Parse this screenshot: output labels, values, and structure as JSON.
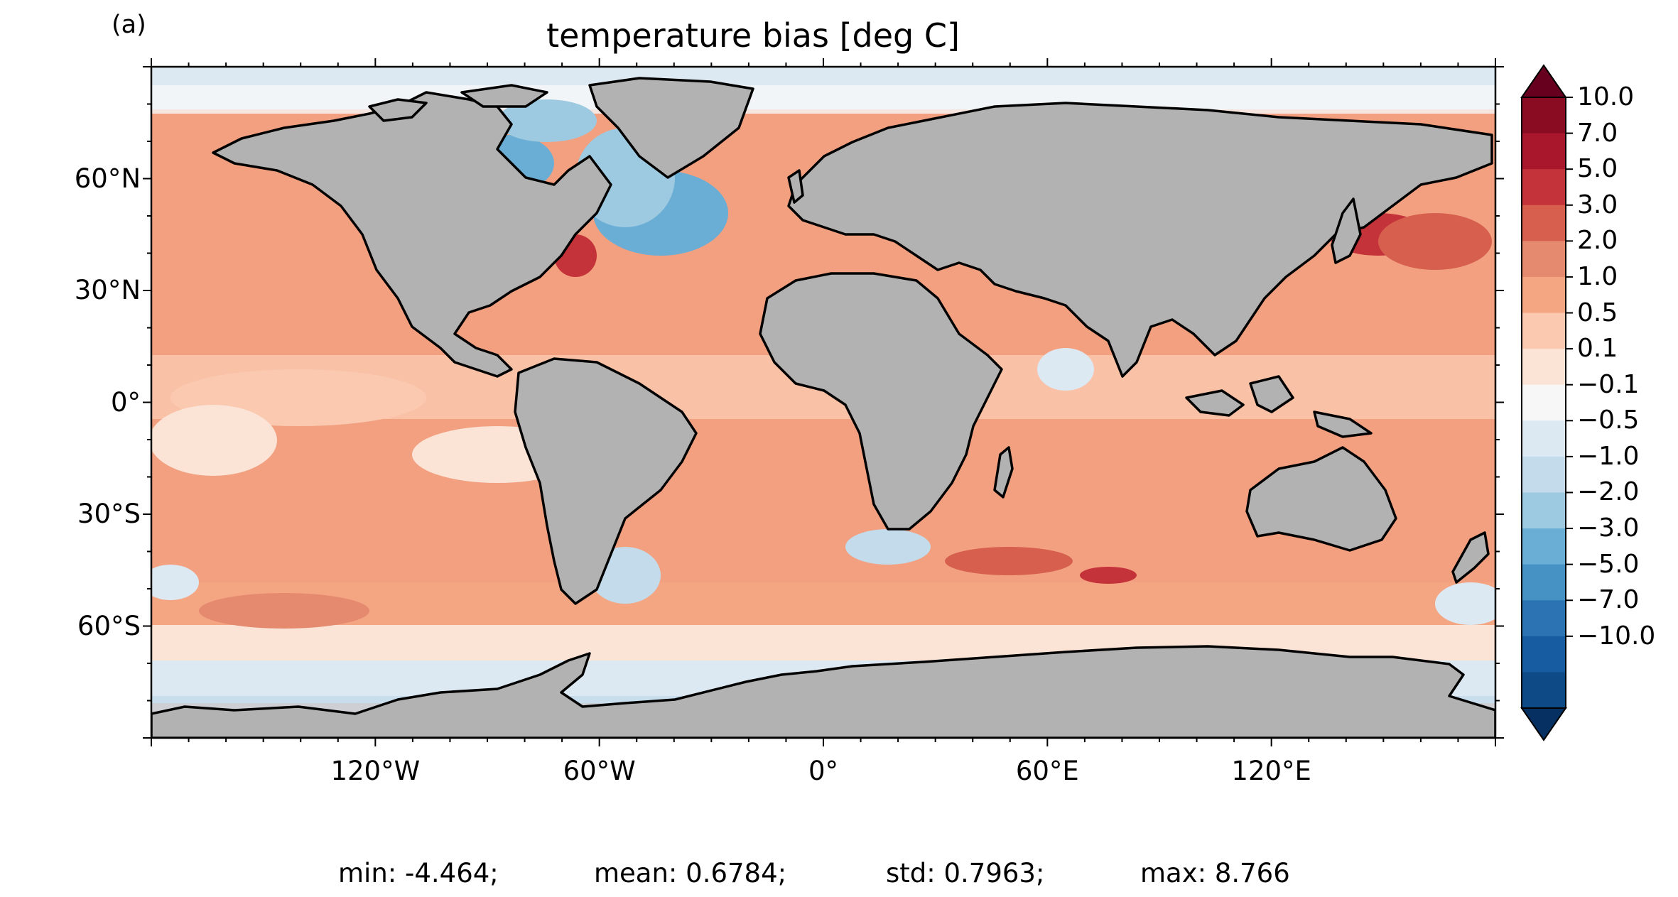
{
  "panel_label": "(a)",
  "title": "temperature bias [deg C]",
  "map": {
    "projection": "PlateCarree",
    "land_color": "#b2b2b2",
    "coastline_color": "#000000",
    "missing_ocean_color": "#ffffff",
    "extent": {
      "lon": [
        -180,
        180
      ],
      "lat": [
        -90,
        90
      ]
    }
  },
  "axes": {
    "y_ticks": [
      {
        "value": 60,
        "label": "60°N"
      },
      {
        "value": 30,
        "label": "30°N"
      },
      {
        "value": 0,
        "label": "0°"
      },
      {
        "value": -30,
        "label": "30°S"
      },
      {
        "value": -60,
        "label": "60°S"
      }
    ],
    "x_ticks": [
      {
        "value": -120,
        "label": "120°W"
      },
      {
        "value": -60,
        "label": "60°W"
      },
      {
        "value": 0,
        "label": "0°"
      },
      {
        "value": 60,
        "label": "60°E"
      },
      {
        "value": 120,
        "label": "120°E"
      }
    ]
  },
  "colorbar": {
    "levels": [
      "10.0",
      "7.0",
      "5.0",
      "3.0",
      "2.0",
      "1.0",
      "0.5",
      "0.1",
      "−0.1",
      "−0.5",
      "−1.0",
      "−2.0",
      "−3.0",
      "−5.0",
      "−7.0",
      "−10.0"
    ],
    "colors_top_to_bottom": [
      "#8a0c22",
      "#a8172b",
      "#c5333a",
      "#d6604d",
      "#e58a6f",
      "#f4a582",
      "#fac9b0",
      "#fbe3d6",
      "#f7f7f7",
      "#dde9f2",
      "#c4dbeb",
      "#9ecae1",
      "#6aaed6",
      "#4692c4",
      "#2b73b3",
      "#175ca0",
      "#0e4a85"
    ],
    "extend_max_color": "#67001f",
    "extend_min_color": "#053061"
  },
  "stats": {
    "min": "min: -4.464;",
    "mean": "mean: 0.6784;",
    "std": "std: 0.7963;",
    "max": "max: 8.766"
  }
}
